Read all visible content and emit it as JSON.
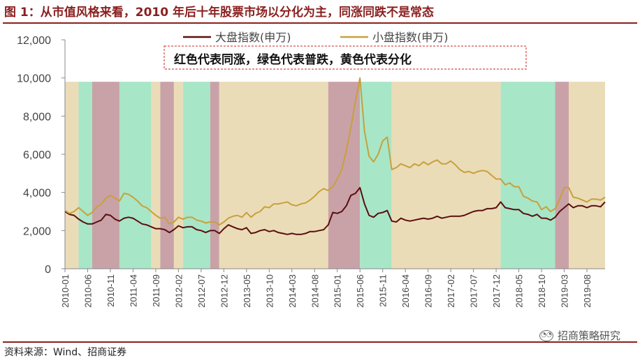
{
  "header": {
    "title": "图 1：从市值风格来看，2010 年后十年股票市场以分化为主，同涨同跌不是常态"
  },
  "footer": {
    "source": "资料来源：Wind、招商证券",
    "brand": "招商策略研究"
  },
  "chart_data": {
    "type": "line",
    "annotation": "红色代表同涨，绿色代表普跌，黄色代表分化",
    "ylim": [
      0,
      12000
    ],
    "yticks": [
      0,
      2000,
      4000,
      6000,
      8000,
      10000,
      12000
    ],
    "ytick_labels": [
      "0",
      "2,000",
      "4,000",
      "6,000",
      "8,000",
      "10,000",
      "12,000"
    ],
    "xlim": [
      "2010-01",
      "2019-12"
    ],
    "xticks": [
      "2010-01",
      "2010-06",
      "2010-11",
      "2011-04",
      "2011-09",
      "2012-02",
      "2012-07",
      "2012-12",
      "2013-05",
      "2013-10",
      "2014-03",
      "2014-08",
      "2015-01",
      "2015-06",
      "2015-11",
      "2016-04",
      "2016-09",
      "2017-02",
      "2017-07",
      "2017-12",
      "2018-05",
      "2018-10",
      "2019-03",
      "2019-08"
    ],
    "legend": {
      "placement": "top"
    },
    "band_colors": {
      "yellow": "#ebdcb8",
      "green": "#a8e6c8",
      "red": "#c9a2a8"
    },
    "regimes": [
      {
        "start": "2010-01",
        "end": "2010-04",
        "color": "yellow"
      },
      {
        "start": "2010-04",
        "end": "2010-07",
        "color": "green"
      },
      {
        "start": "2010-07",
        "end": "2011-01",
        "color": "red"
      },
      {
        "start": "2011-01",
        "end": "2011-08",
        "color": "green"
      },
      {
        "start": "2011-08",
        "end": "2011-10",
        "color": "yellow"
      },
      {
        "start": "2011-10",
        "end": "2012-01",
        "color": "red"
      },
      {
        "start": "2012-01",
        "end": "2012-03",
        "color": "yellow"
      },
      {
        "start": "2012-03",
        "end": "2012-09",
        "color": "green"
      },
      {
        "start": "2012-09",
        "end": "2012-11",
        "color": "red"
      },
      {
        "start": "2012-11",
        "end": "2014-11",
        "color": "yellow"
      },
      {
        "start": "2014-11",
        "end": "2015-06",
        "color": "red"
      },
      {
        "start": "2015-06",
        "end": "2016-01",
        "color": "green"
      },
      {
        "start": "2016-01",
        "end": "2018-01",
        "color": "yellow"
      },
      {
        "start": "2018-01",
        "end": "2019-01",
        "color": "green"
      },
      {
        "start": "2019-01",
        "end": "2019-04",
        "color": "red"
      },
      {
        "start": "2019-04",
        "end": "2019-12",
        "color": "yellow"
      }
    ],
    "series": [
      {
        "name": "大盘指数(申万)",
        "color": "#5a0f0f",
        "points": [
          [
            "2010-01",
            3000
          ],
          [
            "2010-02",
            2850
          ],
          [
            "2010-03",
            2800
          ],
          [
            "2010-04",
            2600
          ],
          [
            "2010-05",
            2450
          ],
          [
            "2010-06",
            2350
          ],
          [
            "2010-07",
            2350
          ],
          [
            "2010-08",
            2450
          ],
          [
            "2010-09",
            2550
          ],
          [
            "2010-10",
            2850
          ],
          [
            "2010-11",
            2800
          ],
          [
            "2010-12",
            2600
          ],
          [
            "2011-01",
            2500
          ],
          [
            "2011-02",
            2650
          ],
          [
            "2011-03",
            2700
          ],
          [
            "2011-04",
            2650
          ],
          [
            "2011-05",
            2500
          ],
          [
            "2011-06",
            2350
          ],
          [
            "2011-07",
            2300
          ],
          [
            "2011-08",
            2200
          ],
          [
            "2011-09",
            2100
          ],
          [
            "2011-10",
            2100
          ],
          [
            "2011-11",
            2050
          ],
          [
            "2011-12",
            1900
          ],
          [
            "2012-01",
            2050
          ],
          [
            "2012-02",
            2250
          ],
          [
            "2012-03",
            2150
          ],
          [
            "2012-04",
            2200
          ],
          [
            "2012-05",
            2200
          ],
          [
            "2012-06",
            2050
          ],
          [
            "2012-07",
            2000
          ],
          [
            "2012-08",
            1900
          ],
          [
            "2012-09",
            2000
          ],
          [
            "2012-10",
            2000
          ],
          [
            "2012-11",
            1850
          ],
          [
            "2012-12",
            2100
          ],
          [
            "2013-01",
            2300
          ],
          [
            "2013-02",
            2200
          ],
          [
            "2013-03",
            2100
          ],
          [
            "2013-04",
            2050
          ],
          [
            "2013-05",
            2150
          ],
          [
            "2013-06",
            1850
          ],
          [
            "2013-07",
            1900
          ],
          [
            "2013-08",
            2000
          ],
          [
            "2013-09",
            2050
          ],
          [
            "2013-10",
            1950
          ],
          [
            "2013-11",
            2000
          ],
          [
            "2013-12",
            1900
          ],
          [
            "2014-01",
            1850
          ],
          [
            "2014-02",
            1800
          ],
          [
            "2014-03",
            1850
          ],
          [
            "2014-04",
            1800
          ],
          [
            "2014-05",
            1800
          ],
          [
            "2014-06",
            1850
          ],
          [
            "2014-07",
            1950
          ],
          [
            "2014-08",
            1950
          ],
          [
            "2014-09",
            2000
          ],
          [
            "2014-10",
            2050
          ],
          [
            "2014-11",
            2300
          ],
          [
            "2014-12",
            2950
          ],
          [
            "2015-01",
            2900
          ],
          [
            "2015-02",
            3000
          ],
          [
            "2015-03",
            3300
          ],
          [
            "2015-04",
            3850
          ],
          [
            "2015-05",
            3950
          ],
          [
            "2015-06",
            4250
          ],
          [
            "2015-07",
            3400
          ],
          [
            "2015-08",
            2800
          ],
          [
            "2015-09",
            2700
          ],
          [
            "2015-10",
            2900
          ],
          [
            "2015-11",
            2950
          ],
          [
            "2015-12",
            3050
          ],
          [
            "2016-01",
            2500
          ],
          [
            "2016-02",
            2450
          ],
          [
            "2016-03",
            2650
          ],
          [
            "2016-04",
            2550
          ],
          [
            "2016-05",
            2500
          ],
          [
            "2016-06",
            2550
          ],
          [
            "2016-07",
            2600
          ],
          [
            "2016-08",
            2650
          ],
          [
            "2016-09",
            2600
          ],
          [
            "2016-10",
            2650
          ],
          [
            "2016-11",
            2750
          ],
          [
            "2016-12",
            2650
          ],
          [
            "2017-01",
            2700
          ],
          [
            "2017-02",
            2750
          ],
          [
            "2017-03",
            2750
          ],
          [
            "2017-04",
            2750
          ],
          [
            "2017-05",
            2800
          ],
          [
            "2017-06",
            2900
          ],
          [
            "2017-07",
            3000
          ],
          [
            "2017-08",
            3050
          ],
          [
            "2017-09",
            3050
          ],
          [
            "2017-10",
            3150
          ],
          [
            "2017-11",
            3150
          ],
          [
            "2017-12",
            3200
          ],
          [
            "2018-01",
            3500
          ],
          [
            "2018-02",
            3200
          ],
          [
            "2018-03",
            3150
          ],
          [
            "2018-04",
            3100
          ],
          [
            "2018-05",
            3100
          ],
          [
            "2018-06",
            2900
          ],
          [
            "2018-07",
            2850
          ],
          [
            "2018-08",
            2750
          ],
          [
            "2018-09",
            2850
          ],
          [
            "2018-10",
            2650
          ],
          [
            "2018-11",
            2650
          ],
          [
            "2018-12",
            2550
          ],
          [
            "2019-01",
            2700
          ],
          [
            "2019-02",
            3000
          ],
          [
            "2019-03",
            3200
          ],
          [
            "2019-04",
            3400
          ],
          [
            "2019-05",
            3200
          ],
          [
            "2019-06",
            3300
          ],
          [
            "2019-07",
            3300
          ],
          [
            "2019-08",
            3200
          ],
          [
            "2019-09",
            3300
          ],
          [
            "2019-10",
            3300
          ],
          [
            "2019-11",
            3250
          ],
          [
            "2019-12",
            3500
          ]
        ]
      },
      {
        "name": "小盘指数(申万)",
        "color": "#c8a03c",
        "points": [
          [
            "2010-01",
            3050
          ],
          [
            "2010-02",
            2900
          ],
          [
            "2010-03",
            3000
          ],
          [
            "2010-04",
            3200
          ],
          [
            "2010-05",
            3000
          ],
          [
            "2010-06",
            2800
          ],
          [
            "2010-07",
            2950
          ],
          [
            "2010-08",
            3250
          ],
          [
            "2010-09",
            3400
          ],
          [
            "2010-10",
            3700
          ],
          [
            "2010-11",
            3850
          ],
          [
            "2010-12",
            3700
          ],
          [
            "2011-01",
            3550
          ],
          [
            "2011-02",
            3950
          ],
          [
            "2011-03",
            3900
          ],
          [
            "2011-04",
            3750
          ],
          [
            "2011-05",
            3550
          ],
          [
            "2011-06",
            3300
          ],
          [
            "2011-07",
            3200
          ],
          [
            "2011-08",
            3000
          ],
          [
            "2011-09",
            2800
          ],
          [
            "2011-10",
            2650
          ],
          [
            "2011-11",
            2700
          ],
          [
            "2011-12",
            2350
          ],
          [
            "2012-01",
            2450
          ],
          [
            "2012-02",
            2700
          ],
          [
            "2012-03",
            2600
          ],
          [
            "2012-04",
            2700
          ],
          [
            "2012-05",
            2700
          ],
          [
            "2012-06",
            2550
          ],
          [
            "2012-07",
            2500
          ],
          [
            "2012-08",
            2400
          ],
          [
            "2012-09",
            2450
          ],
          [
            "2012-10",
            2450
          ],
          [
            "2012-11",
            2300
          ],
          [
            "2012-12",
            2450
          ],
          [
            "2013-01",
            2650
          ],
          [
            "2013-02",
            2750
          ],
          [
            "2013-03",
            2800
          ],
          [
            "2013-04",
            2700
          ],
          [
            "2013-05",
            2950
          ],
          [
            "2013-06",
            2700
          ],
          [
            "2013-07",
            2900
          ],
          [
            "2013-08",
            3000
          ],
          [
            "2013-09",
            3250
          ],
          [
            "2013-10",
            3200
          ],
          [
            "2013-11",
            3400
          ],
          [
            "2013-12",
            3400
          ],
          [
            "2014-01",
            3450
          ],
          [
            "2014-02",
            3500
          ],
          [
            "2014-03",
            3350
          ],
          [
            "2014-04",
            3300
          ],
          [
            "2014-05",
            3400
          ],
          [
            "2014-06",
            3450
          ],
          [
            "2014-07",
            3600
          ],
          [
            "2014-08",
            3800
          ],
          [
            "2014-09",
            4050
          ],
          [
            "2014-10",
            4200
          ],
          [
            "2014-11",
            4100
          ],
          [
            "2014-12",
            4300
          ],
          [
            "2015-01",
            4700
          ],
          [
            "2015-02",
            5200
          ],
          [
            "2015-03",
            6200
          ],
          [
            "2015-04",
            7400
          ],
          [
            "2015-05",
            8800
          ],
          [
            "2015-06",
            10000
          ],
          [
            "2015-07",
            7200
          ],
          [
            "2015-08",
            5900
          ],
          [
            "2015-09",
            5600
          ],
          [
            "2015-10",
            6000
          ],
          [
            "2015-11",
            6700
          ],
          [
            "2015-12",
            6900
          ],
          [
            "2016-01",
            5200
          ],
          [
            "2016-02",
            5300
          ],
          [
            "2016-03",
            5500
          ],
          [
            "2016-04",
            5400
          ],
          [
            "2016-05",
            5300
          ],
          [
            "2016-06",
            5500
          ],
          [
            "2016-07",
            5400
          ],
          [
            "2016-08",
            5600
          ],
          [
            "2016-09",
            5450
          ],
          [
            "2016-10",
            5600
          ],
          [
            "2016-11",
            5700
          ],
          [
            "2016-12",
            5500
          ],
          [
            "2017-01",
            5500
          ],
          [
            "2017-02",
            5650
          ],
          [
            "2017-03",
            5450
          ],
          [
            "2017-04",
            5200
          ],
          [
            "2017-05",
            5050
          ],
          [
            "2017-06",
            5100
          ],
          [
            "2017-07",
            5000
          ],
          [
            "2017-08",
            5100
          ],
          [
            "2017-09",
            5150
          ],
          [
            "2017-10",
            5100
          ],
          [
            "2017-11",
            4900
          ],
          [
            "2017-12",
            4700
          ],
          [
            "2018-01",
            4700
          ],
          [
            "2018-02",
            4400
          ],
          [
            "2018-03",
            4500
          ],
          [
            "2018-04",
            4300
          ],
          [
            "2018-05",
            4300
          ],
          [
            "2018-06",
            3800
          ],
          [
            "2018-07",
            3700
          ],
          [
            "2018-08",
            3550
          ],
          [
            "2018-09",
            3500
          ],
          [
            "2018-10",
            3100
          ],
          [
            "2018-11",
            3250
          ],
          [
            "2018-12",
            3000
          ],
          [
            "2019-01",
            3150
          ],
          [
            "2019-02",
            3650
          ],
          [
            "2019-03",
            4250
          ],
          [
            "2019-04",
            4250
          ],
          [
            "2019-05",
            3750
          ],
          [
            "2019-06",
            3700
          ],
          [
            "2019-07",
            3600
          ],
          [
            "2019-08",
            3500
          ],
          [
            "2019-09",
            3650
          ],
          [
            "2019-10",
            3650
          ],
          [
            "2019-11",
            3600
          ],
          [
            "2019-12",
            3750
          ]
        ]
      }
    ]
  }
}
